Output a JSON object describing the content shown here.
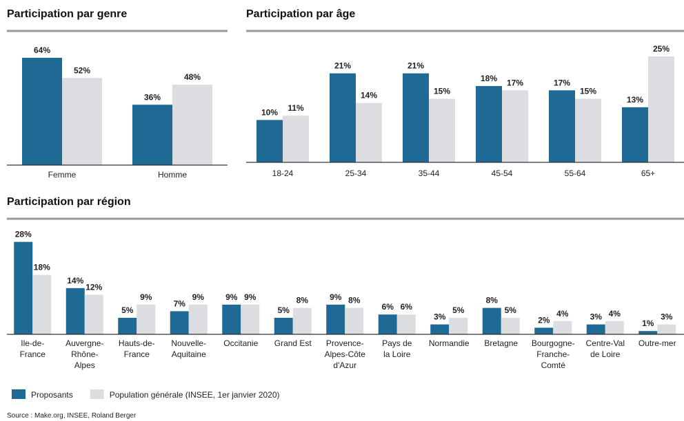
{
  "chart_data": [
    {
      "type": "bar",
      "title": "Participation par genre",
      "categories": [
        "Femme",
        "Homme"
      ],
      "ylim": [
        0,
        80
      ],
      "series": [
        {
          "name": "Proposants",
          "color": "#1f6a94",
          "values": [
            64,
            36
          ],
          "value_labels": [
            "64%",
            "36%"
          ]
        },
        {
          "name": "Population générale (INSEE, 1er janvier 2020)",
          "color": "#dcdde1",
          "values": [
            52,
            48
          ],
          "value_labels": [
            "52%",
            "48%"
          ]
        }
      ]
    },
    {
      "type": "bar",
      "title": "Participation par âge",
      "categories": [
        "18-24",
        "25-34",
        "35-44",
        "45-54",
        "55-64",
        "65+"
      ],
      "ylim": [
        0,
        31
      ],
      "series": [
        {
          "name": "Proposants",
          "color": "#1f6a94",
          "values": [
            10,
            21,
            21,
            18,
            17,
            13
          ],
          "value_labels": [
            "10%",
            "21%",
            "21%",
            "18%",
            "17%",
            "13%"
          ]
        },
        {
          "name": "Population générale (INSEE, 1er janvier 2020)",
          "color": "#dcdde1",
          "values": [
            11,
            14,
            15,
            17,
            15,
            25
          ],
          "value_labels": [
            "11%",
            "14%",
            "15%",
            "17%",
            "15%",
            "25%"
          ]
        }
      ]
    },
    {
      "type": "bar",
      "title": "Participation par région",
      "categories": [
        "Ile-de-\nFrance",
        "Auvergne-\nRhône-\nAlpes",
        "Hauts-de-\nFrance",
        "Nouvelle-\nAquitaine",
        "Occitanie",
        "Grand Est",
        "Provence-\nAlpes-Côte\nd'Azur",
        "Pays de\nla Loire",
        "Normandie",
        "Bretagne",
        "Bourgogne-\nFranche-\nComté",
        "Centre-Val\nde Loire",
        "Outre-mer"
      ],
      "ylim": [
        0,
        35
      ],
      "series": [
        {
          "name": "Proposants",
          "color": "#1f6a94",
          "values": [
            28,
            14,
            5,
            7,
            9,
            5,
            9,
            6,
            3,
            8,
            2,
            3,
            1
          ],
          "value_labels": [
            "28%",
            "14%",
            "5%",
            "7%",
            "9%",
            "5%",
            "9%",
            "6%",
            "3%",
            "8%",
            "2%",
            "3%",
            "1%"
          ]
        },
        {
          "name": "Population générale (INSEE, 1er janvier 2020)",
          "color": "#dcdde1",
          "values": [
            18,
            12,
            9,
            9,
            9,
            8,
            8,
            6,
            5,
            5,
            4,
            4,
            3
          ],
          "value_labels": [
            "18%",
            "12%",
            "9%",
            "9%",
            "9%",
            "8%",
            "8%",
            "6%",
            "5%",
            "5%",
            "4%",
            "4%",
            "3%"
          ]
        }
      ]
    }
  ],
  "source": "Source : Make.org, INSEE, Roland Berger"
}
